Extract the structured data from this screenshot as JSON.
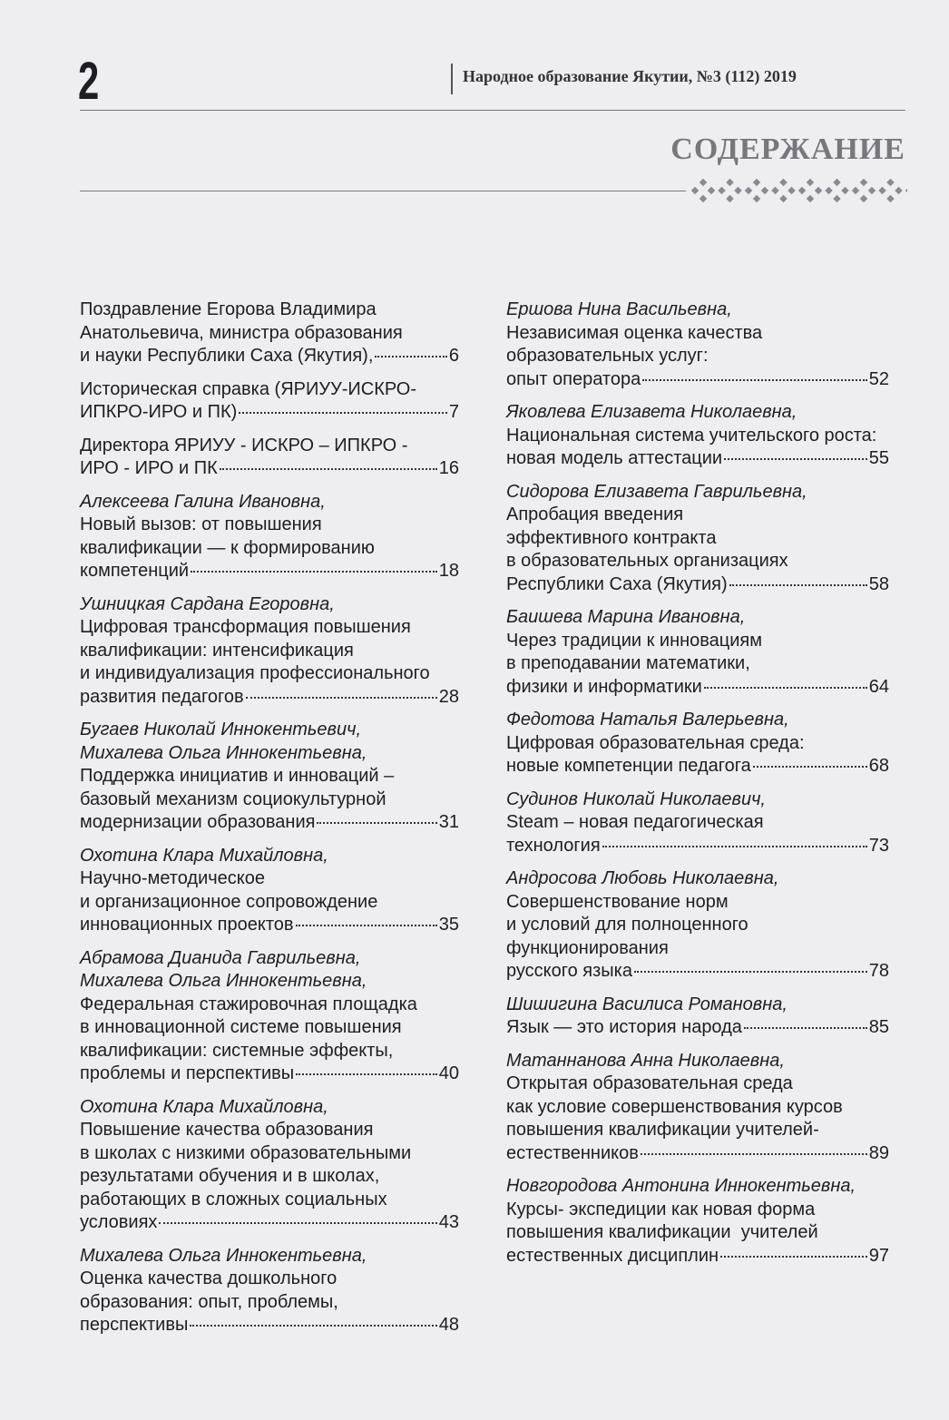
{
  "header": {
    "page_number": "2",
    "journal": "Народное образование Якутии, №3 (112) 2019",
    "section_title": "СОДЕРЖАНИЕ"
  },
  "columns": [
    {
      "entries": [
        {
          "lines": [
            "Поздравление Егорова Владимира",
            "Анатольевича, министра образования",
            "и науки Республики Саха (Якутия),"
          ],
          "page": 6
        },
        {
          "lines": [
            "Историческая справка (ЯРИУУ-ИСКРО-",
            "ИПКРО-ИРО и ПК)"
          ],
          "page": 7
        },
        {
          "lines": [
            "Директора ЯРИУУ - ИСКРО – ИПКРО -",
            "ИРО - ИРО и ПК"
          ],
          "page": 16
        },
        {
          "authors": [
            "Алексеева Галина Ивановна,"
          ],
          "lines": [
            "Новый вызов: от повышения",
            "квалификации — к формированию",
            "компетенций"
          ],
          "page": 18
        },
        {
          "authors": [
            "Ушницкая Сардана Егоровна,"
          ],
          "lines": [
            "Цифровая трансформация повышения",
            "квалификации: интенсификация",
            "и индивидуализация профессионального",
            "развития педагогов"
          ],
          "page": 28
        },
        {
          "authors": [
            "Бугаев Николай Иннокентьевич,",
            "Михалева Ольга Иннокентьевна,"
          ],
          "lines": [
            "Поддержка инициатив и инноваций –",
            "базовый механизм социокультурной",
            "модернизации образования"
          ],
          "page": 31
        },
        {
          "authors": [
            "Охотина Клара Михайловна,"
          ],
          "lines": [
            "Научно-методическое",
            "и организационное сопровождение",
            "инновационных проектов"
          ],
          "page": 35
        },
        {
          "authors": [
            "Абрамова Дианида Гаврильевна,",
            "Михалева Ольга Иннокентьевна,"
          ],
          "lines": [
            "Федеральная стажировочная площадка",
            "в инновационной системе повышения",
            "квалификации: системные эффекты,",
            "проблемы и перспективы"
          ],
          "page": 40
        },
        {
          "authors": [
            "Охотина Клара Михайловна,"
          ],
          "lines": [
            "Повышение качества образования",
            "в школах с низкими образовательными",
            "результатами обучения и в школах,",
            "работающих в сложных социальных",
            "условиях"
          ],
          "page": 43
        },
        {
          "authors": [
            "Михалева Ольга Иннокентьевна,"
          ],
          "lines": [
            "Оценка качества дошкольного",
            "образования: опыт, проблемы,",
            "перспективы"
          ],
          "page": 48
        }
      ]
    },
    {
      "entries": [
        {
          "authors": [
            "Ершова Нина Васильевна,"
          ],
          "lines": [
            "Независимая оценка качества",
            "образовательных услуг:",
            "опыт оператора"
          ],
          "page": 52
        },
        {
          "authors": [
            "Яковлева Елизавета Николаевна,"
          ],
          "lines": [
            "Национальная система учительского роста:",
            "новая модель аттестации"
          ],
          "page": 55
        },
        {
          "authors": [
            "Сидорова Елизавета Гаврильевна,"
          ],
          "lines": [
            "Апробация введения",
            "эффективного контракта",
            "в образовательных организациях",
            "Республики Саха (Якутия)"
          ],
          "page": 58
        },
        {
          "authors": [
            "Баишева Марина Ивановна,"
          ],
          "lines": [
            "Через традиции к инновациям",
            "в преподавании математики,",
            "физики и информатики"
          ],
          "page": 64
        },
        {
          "authors": [
            "Федотова Наталья Валерьевна,"
          ],
          "lines": [
            "Цифровая образовательная среда:",
            "новые компетенции педагога"
          ],
          "page": 68
        },
        {
          "authors": [
            "Судинов Николай Николаевич,"
          ],
          "lines": [
            "Steam – новая педагогическая",
            "технология"
          ],
          "page": 73
        },
        {
          "authors": [
            "Андросова Любовь Николаевна,"
          ],
          "lines": [
            "Совершенствование норм",
            "и условий для полноценного",
            "функционирования",
            "русского языка"
          ],
          "page": 78
        },
        {
          "authors": [
            "Шишигина Василиса Романовна,"
          ],
          "lines": [
            "Язык — это история народа"
          ],
          "page": 85
        },
        {
          "authors": [
            "Матаннанова Анна Николаевна,"
          ],
          "lines": [
            "Открытая образовательная среда",
            "как условие совершенствования курсов",
            "повышения квалификации учителей-",
            "естественников"
          ],
          "page": 89
        },
        {
          "authors": [
            "Новгородова Антонина Иннокентьевна,"
          ],
          "lines": [
            "Курсы- экспедиции как новая форма",
            "повышения квалификации  учителей",
            "естественных дисциплин"
          ],
          "page": 97
        }
      ]
    }
  ]
}
